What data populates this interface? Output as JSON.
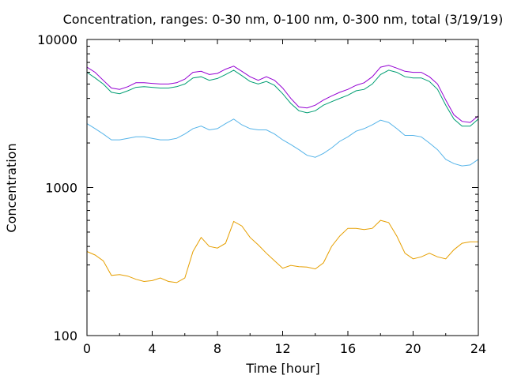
{
  "chart_data": {
    "type": "line",
    "title": "Concentration, ranges: 0-30 nm, 0-100 nm, 0-300 nm, total (3/19/19)",
    "xlabel": "Time [hour]",
    "ylabel": "Concentration",
    "xlim": [
      0,
      24
    ],
    "ylim": [
      100,
      10000
    ],
    "yscale": "log",
    "xticks": [
      0,
      4,
      8,
      12,
      16,
      20,
      24
    ],
    "xtick_labels": [
      "0",
      "4",
      "8",
      "12",
      "16",
      "20",
      "24"
    ],
    "yticks": [
      100,
      1000,
      10000
    ],
    "ytick_labels": [
      "100",
      "1000",
      "10000"
    ],
    "grid": false,
    "legend": "none",
    "x": [
      0,
      0.5,
      1,
      1.5,
      2,
      2.5,
      3,
      3.5,
      4,
      4.5,
      5,
      5.5,
      6,
      6.5,
      7,
      7.5,
      8,
      8.5,
      9,
      9.5,
      10,
      10.5,
      11,
      11.5,
      12,
      12.5,
      13,
      13.5,
      14,
      14.5,
      15,
      15.5,
      16,
      16.5,
      17,
      17.5,
      18,
      18.5,
      19,
      19.5,
      20,
      20.5,
      21,
      21.5,
      22,
      22.5,
      23,
      23.5,
      24
    ],
    "series": [
      {
        "color": "#e69f00",
        "values": [
          370,
          350,
          320,
          255,
          258,
          252,
          240,
          232,
          235,
          245,
          232,
          228,
          245,
          370,
          460,
          400,
          390,
          420,
          590,
          550,
          460,
          410,
          360,
          320,
          285,
          298,
          292,
          290,
          282,
          310,
          400,
          470,
          530,
          530,
          520,
          530,
          600,
          580,
          470,
          360,
          330,
          340,
          360,
          340,
          330,
          380,
          420,
          430,
          430
        ]
      },
      {
        "color": "#56b4e9",
        "values": [
          2700,
          2500,
          2300,
          2100,
          2100,
          2150,
          2200,
          2200,
          2150,
          2100,
          2100,
          2150,
          2300,
          2500,
          2600,
          2450,
          2500,
          2700,
          2900,
          2650,
          2500,
          2450,
          2450,
          2300,
          2100,
          1950,
          1800,
          1650,
          1600,
          1700,
          1850,
          2050,
          2200,
          2400,
          2500,
          2650,
          2850,
          2750,
          2500,
          2250,
          2250,
          2200,
          2000,
          1800,
          1550,
          1450,
          1400,
          1420,
          1550
        ]
      },
      {
        "color": "#009e73",
        "values": [
          6000,
          5500,
          5000,
          4400,
          4300,
          4500,
          4750,
          4800,
          4750,
          4700,
          4700,
          4800,
          5000,
          5500,
          5600,
          5300,
          5450,
          5800,
          6200,
          5700,
          5200,
          5000,
          5200,
          4900,
          4300,
          3700,
          3300,
          3200,
          3300,
          3600,
          3800,
          4000,
          4200,
          4500,
          4600,
          5000,
          5800,
          6200,
          6000,
          5600,
          5500,
          5500,
          5200,
          4600,
          3600,
          2900,
          2600,
          2600,
          2900
        ]
      },
      {
        "color": "#9400d3",
        "values": [
          6500,
          6000,
          5300,
          4700,
          4600,
          4800,
          5100,
          5100,
          5050,
          5000,
          5000,
          5100,
          5400,
          6000,
          6100,
          5800,
          5900,
          6300,
          6600,
          6100,
          5600,
          5300,
          5600,
          5300,
          4700,
          4000,
          3500,
          3450,
          3600,
          3900,
          4150,
          4400,
          4600,
          4900,
          5100,
          5600,
          6500,
          6700,
          6400,
          6100,
          6000,
          6000,
          5600,
          5000,
          3900,
          3100,
          2800,
          2750,
          3050
        ]
      }
    ]
  }
}
